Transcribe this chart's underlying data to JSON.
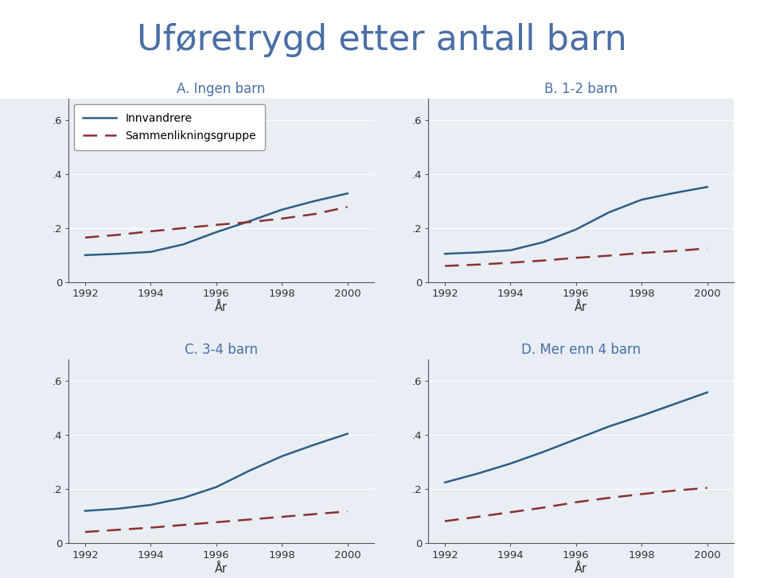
{
  "title": "Uføretrygd etter antall barn",
  "title_color": "#4a6fa5",
  "title_fontsize": 32,
  "fig_bg_color": "#ffffff",
  "plot_area_color": "#e8eef4",
  "years": [
    1992,
    1993,
    1994,
    1995,
    1996,
    1997,
    1998,
    1999,
    2000
  ],
  "panels": [
    {
      "title": "A. Ingen barn",
      "innvandrere": [
        0.1,
        0.105,
        0.112,
        0.14,
        0.185,
        0.225,
        0.268,
        0.3,
        0.328
      ],
      "sammenlikning": [
        0.165,
        0.175,
        0.188,
        0.2,
        0.212,
        0.222,
        0.235,
        0.252,
        0.278
      ],
      "show_legend": true
    },
    {
      "title": "B. 1-2 barn",
      "innvandrere": [
        0.105,
        0.11,
        0.118,
        0.148,
        0.195,
        0.258,
        0.305,
        0.33,
        0.352
      ],
      "sammenlikning": [
        0.06,
        0.065,
        0.072,
        0.08,
        0.09,
        0.098,
        0.108,
        0.115,
        0.125
      ],
      "show_legend": false
    },
    {
      "title": "C. 3-4 barn",
      "innvandrere": [
        0.12,
        0.128,
        0.142,
        0.168,
        0.208,
        0.268,
        0.322,
        0.365,
        0.405
      ],
      "sammenlikning": [
        0.042,
        0.05,
        0.058,
        0.068,
        0.078,
        0.088,
        0.098,
        0.108,
        0.118
      ],
      "show_legend": false
    },
    {
      "title": "D. Mer enn 4 barn",
      "innvandrere": [
        0.225,
        0.258,
        0.295,
        0.338,
        0.385,
        0.432,
        0.472,
        0.515,
        0.558
      ],
      "sammenlikning": [
        0.082,
        0.098,
        0.115,
        0.132,
        0.152,
        0.168,
        0.182,
        0.195,
        0.205
      ],
      "show_legend": false
    }
  ],
  "innvandrere_color": "#2e5d87",
  "sammenlikning_color": "#8b3030",
  "xlabel": "År",
  "ylim": [
    0,
    0.68
  ],
  "yticks": [
    0,
    0.2,
    0.4,
    0.6
  ],
  "ytick_labels": [
    "0",
    ".2",
    ".4",
    ".6"
  ],
  "xticks": [
    1992,
    1994,
    1996,
    1998,
    2000
  ],
  "legend_label_innvandrere": "Innvandrere",
  "legend_label_sammenlikning": "Sammenlikningsgruppe",
  "grid_color": "#ffffff",
  "spine_color": "#555555",
  "tick_label_color": "#333333"
}
